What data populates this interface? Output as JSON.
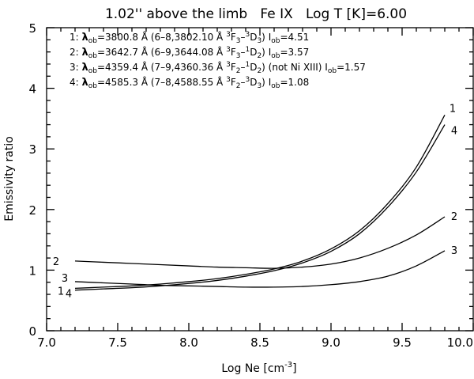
{
  "chart_data": {
    "type": "line",
    "title": "1.02'' above the limb   Fe IX   Log T [K]=6.00",
    "xlabel": "Log Ne [cm",
    "xlabel_sup": "-3",
    "xlabel_end": "]",
    "ylabel": "Emissivity ratio",
    "xlim": [
      7.0,
      10.0
    ],
    "ylim": [
      0,
      5
    ],
    "xticks": [
      7.0,
      7.5,
      8.0,
      8.5,
      9.0,
      9.5,
      10.0
    ],
    "xtick_labels": [
      "7.0",
      "7.5",
      "8.0",
      "8.5",
      "9.0",
      "9.5",
      "10.0"
    ],
    "yticks": [
      0,
      1,
      2,
      3,
      4,
      5
    ],
    "ytick_labels": [
      "0",
      "1",
      "2",
      "3",
      "4",
      "5"
    ],
    "grid": false,
    "legend": [
      {
        "id": "1:",
        "lam": "λ",
        "lam_sub": "ob",
        "lam_val": "=3800.8 Å (6–8,3802.10 Å ",
        "t1": "3",
        "t1b": "F",
        "t1s": "3",
        "dash": "–",
        "t2": "3",
        "t2b": "D",
        "t2s": "3",
        "close": ")",
        "note": "",
        "i": "I",
        "i_sub": "ob",
        "i_val": "=4.51"
      },
      {
        "id": "2:",
        "lam": "λ",
        "lam_sub": "ob",
        "lam_val": "=3642.7 Å (6–9,3644.08 Å ",
        "t1": "3",
        "t1b": "F",
        "t1s": "3",
        "dash": "–",
        "t2": "1",
        "t2b": "D",
        "t2s": "2",
        "close": ")",
        "note": "",
        "i": "I",
        "i_sub": "ob",
        "i_val": "=3.57"
      },
      {
        "id": "3:",
        "lam": "λ",
        "lam_sub": "ob",
        "lam_val": "=4359.4 Å (7–9,4360.36 Å ",
        "t1": "3",
        "t1b": "F",
        "t1s": "2",
        "dash": "–",
        "t2": "1",
        "t2b": "D",
        "t2s": "2",
        "close": ")",
        "note": " (not Ni XIII) ",
        "i": "I",
        "i_sub": "ob",
        "i_val": "=1.57"
      },
      {
        "id": "4:",
        "lam": "λ",
        "lam_sub": "ob",
        "lam_val": "=4585.3 Å (7–8,4588.55 Å ",
        "t1": "3",
        "t1b": "F",
        "t1s": "2",
        "dash": "–",
        "t2": "3",
        "t2b": "D",
        "t2s": "3",
        "close": ")",
        "note": "",
        "i": "I",
        "i_sub": "ob",
        "i_val": "=1.08"
      }
    ],
    "x": [
      7.2,
      7.4,
      7.6,
      7.8,
      8.0,
      8.2,
      8.4,
      8.6,
      8.8,
      9.0,
      9.2,
      9.4,
      9.6,
      9.8
    ],
    "series": [
      {
        "name": "1",
        "values": [
          0.7,
          0.72,
          0.74,
          0.77,
          0.81,
          0.86,
          0.93,
          1.02,
          1.15,
          1.35,
          1.65,
          2.1,
          2.7,
          3.56
        ]
      },
      {
        "name": "2",
        "values": [
          1.15,
          1.13,
          1.11,
          1.09,
          1.07,
          1.05,
          1.04,
          1.03,
          1.05,
          1.1,
          1.2,
          1.36,
          1.58,
          1.88
        ]
      },
      {
        "name": "3",
        "values": [
          0.81,
          0.79,
          0.77,
          0.75,
          0.74,
          0.73,
          0.72,
          0.72,
          0.73,
          0.76,
          0.81,
          0.9,
          1.07,
          1.32
        ]
      },
      {
        "name": "4",
        "values": [
          0.67,
          0.69,
          0.71,
          0.74,
          0.78,
          0.83,
          0.9,
          0.99,
          1.12,
          1.31,
          1.6,
          2.04,
          2.62,
          3.4
        ]
      }
    ],
    "left_labels": [
      {
        "text": "2",
        "series": "2"
      },
      {
        "text": "1",
        "series": "1"
      },
      {
        "text": "3",
        "series": "3"
      },
      {
        "text": "4",
        "series": "4"
      }
    ],
    "right_labels": [
      {
        "text": "1",
        "series": "1"
      },
      {
        "text": "4",
        "series": "4"
      },
      {
        "text": "2",
        "series": "2"
      },
      {
        "text": "3",
        "series": "3"
      }
    ]
  }
}
